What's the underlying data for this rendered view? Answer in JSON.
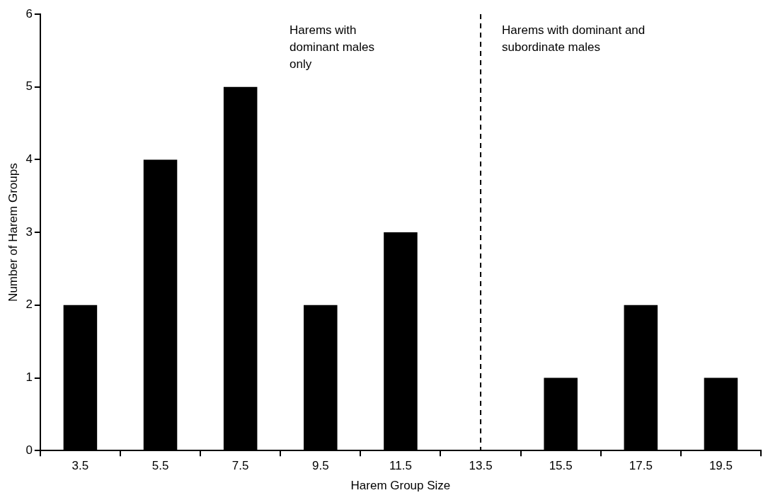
{
  "chart_data": {
    "type": "bar",
    "xlabel": "Harem Group Size",
    "ylabel": "Number of Harem Groups",
    "categories": [
      "3.5",
      "5.5",
      "7.5",
      "9.5",
      "11.5",
      "13.5",
      "15.5",
      "17.5",
      "19.5"
    ],
    "values": [
      2,
      4,
      5,
      2,
      3,
      0,
      1,
      2,
      1
    ],
    "color": "#000000",
    "ylim": [
      0,
      6
    ],
    "yticks": [
      0,
      1,
      2,
      3,
      4,
      5,
      6
    ],
    "grid": false,
    "legend": false,
    "ref_lines": [
      {
        "axis": "x",
        "value": "13.5",
        "line_style": "dashed",
        "color": "#000000"
      }
    ],
    "annotations": [
      "Harems with dominant males only",
      "Harems with dominant and subordinate males"
    ]
  }
}
